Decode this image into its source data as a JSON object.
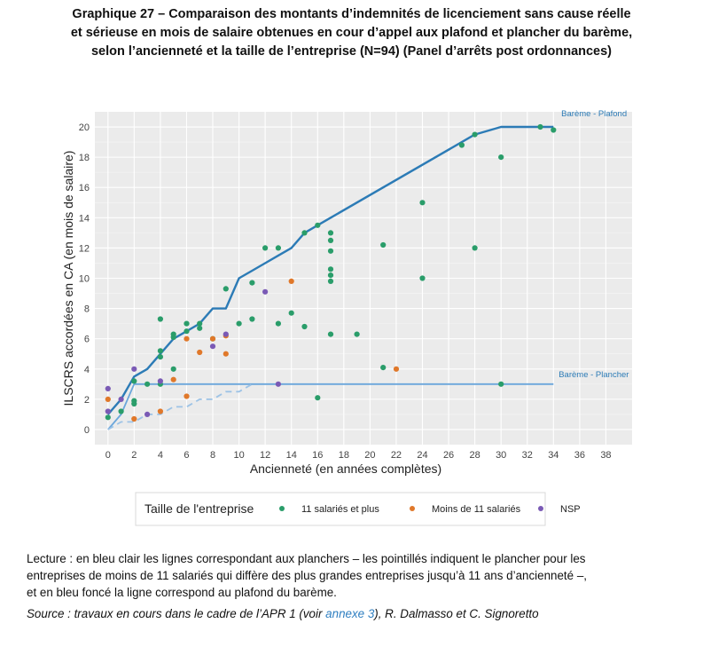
{
  "title_lines": [
    "Graphique 27 – Comparaison des montants d’indemnités de licenciement sans cause réelle",
    "et sérieuse en mois de salaire obtenues en cour d’appel aux plafond et plancher du barème,",
    "selon l’ancienneté et la taille de l’entreprise (N=94) (Panel d’arrêts post ordonnances)"
  ],
  "lecture": {
    "lines": [
      "Lecture : en bleu clair les lignes correspondant aux planchers – les pointillés indiquent le plancher pour les",
      "entreprises de moins de 11 salariés qui diffère des plus grandes entreprises jusqu’à 11 ans d’ancienneté –,",
      "et en bleu foncé la ligne correspond au plafond du barème."
    ]
  },
  "source": {
    "prefix": "Source : travaux en cours dans le cadre de l’APR 1 (voir ",
    "link": "annexe 3",
    "suffix": "), R. Dalmasso et C. Signoretto"
  },
  "colors": {
    "plafond": "#2c7bb6",
    "plancher": "#6aa6db",
    "plancher_small": "#9dc3e6",
    "series_11_plus": "#2a9d6a",
    "series_moins_11": "#e0782a",
    "series_nsp": "#7a5ab5",
    "panel_bg": "#ebebeb",
    "grid": "#ffffff"
  },
  "chart_data": {
    "type": "scatter",
    "xlabel": "Ancienneté (en années complètes)",
    "ylabel": "ILSCRS accordées en CA (en mois de salaire)",
    "xlim": [
      -1,
      40
    ],
    "ylim": [
      -1,
      21
    ],
    "x_ticks": [
      0,
      2,
      4,
      6,
      8,
      10,
      12,
      14,
      16,
      18,
      20,
      22,
      24,
      26,
      28,
      30,
      32,
      34,
      36,
      38
    ],
    "y_ticks": [
      0,
      2,
      4,
      6,
      8,
      10,
      12,
      14,
      16,
      18,
      20
    ],
    "grid": true,
    "legend": {
      "title": "Taille de l'entreprise",
      "placement": "bottom",
      "entries": [
        "11 salariés et plus",
        "Moins de 11 salariés",
        "NSP"
      ]
    },
    "lines": [
      {
        "name": "Barème - Plafond",
        "style": "solid",
        "points": [
          [
            0,
            1
          ],
          [
            1,
            2
          ],
          [
            2,
            3.5
          ],
          [
            3,
            4
          ],
          [
            4,
            5
          ],
          [
            5,
            6
          ],
          [
            6,
            6.5
          ],
          [
            7,
            7
          ],
          [
            8,
            8
          ],
          [
            9,
            8
          ],
          [
            10,
            10
          ],
          [
            11,
            10.5
          ],
          [
            12,
            11
          ],
          [
            13,
            11.5
          ],
          [
            14,
            12
          ],
          [
            15,
            13
          ],
          [
            16,
            13.5
          ],
          [
            17,
            14
          ],
          [
            28,
            19.5
          ],
          [
            30,
            20
          ],
          [
            34,
            20
          ]
        ]
      },
      {
        "name": "Barème - Plancher",
        "style": "solid",
        "points": [
          [
            0,
            0
          ],
          [
            1,
            1
          ],
          [
            2,
            3
          ],
          [
            34,
            3
          ]
        ]
      },
      {
        "name": "",
        "style": "dashed",
        "points": [
          [
            0,
            0
          ],
          [
            1,
            0.5
          ],
          [
            2,
            0.5
          ],
          [
            3,
            1
          ],
          [
            4,
            1
          ],
          [
            5,
            1.5
          ],
          [
            6,
            1.5
          ],
          [
            7,
            2
          ],
          [
            8,
            2
          ],
          [
            9,
            2.5
          ],
          [
            10,
            2.5
          ],
          [
            11,
            3
          ]
        ]
      }
    ],
    "line_labels": [
      "Barème - Plafond",
      "Barème - Plancher"
    ],
    "series": [
      {
        "name": "11 salariés et plus",
        "points": [
          [
            0,
            0.8
          ],
          [
            1,
            1.2
          ],
          [
            2,
            1.7
          ],
          [
            2,
            1.9
          ],
          [
            2,
            3.2
          ],
          [
            3,
            3
          ],
          [
            4,
            3
          ],
          [
            4,
            4.8
          ],
          [
            4,
            5.2
          ],
          [
            4,
            7.3
          ],
          [
            5,
            4
          ],
          [
            5,
            6.1
          ],
          [
            5,
            6.3
          ],
          [
            6,
            6.5
          ],
          [
            6,
            7
          ],
          [
            7,
            6.7
          ],
          [
            7,
            7
          ],
          [
            8,
            6
          ],
          [
            9,
            9.3
          ],
          [
            10,
            7
          ],
          [
            11,
            7.3
          ],
          [
            11,
            9.7
          ],
          [
            12,
            12
          ],
          [
            13,
            7
          ],
          [
            13,
            12
          ],
          [
            14,
            7.7
          ],
          [
            15,
            6.8
          ],
          [
            15,
            13
          ],
          [
            16,
            2.1
          ],
          [
            16,
            13.5
          ],
          [
            17,
            6.3
          ],
          [
            17,
            9.8
          ],
          [
            17,
            10.2
          ],
          [
            17,
            10.6
          ],
          [
            17,
            11.8
          ],
          [
            17,
            12.5
          ],
          [
            17,
            13
          ],
          [
            19,
            6.3
          ],
          [
            21,
            4.1
          ],
          [
            21,
            12.2
          ],
          [
            24,
            10
          ],
          [
            24,
            15
          ],
          [
            27,
            18.8
          ],
          [
            28,
            12
          ],
          [
            28,
            19.5
          ],
          [
            30,
            3
          ],
          [
            30,
            18
          ],
          [
            33,
            20
          ],
          [
            34,
            19.8
          ]
        ]
      },
      {
        "name": "Moins de 11 salariés",
        "points": [
          [
            0,
            2
          ],
          [
            2,
            0.7
          ],
          [
            4,
            1.2
          ],
          [
            5,
            3.3
          ],
          [
            6,
            2.2
          ],
          [
            6,
            6
          ],
          [
            7,
            5.1
          ],
          [
            8,
            6
          ],
          [
            9,
            5
          ],
          [
            9,
            6.2
          ],
          [
            14,
            9.8
          ],
          [
            22,
            4
          ]
        ]
      },
      {
        "name": "NSP",
        "points": [
          [
            0,
            2.7
          ],
          [
            0,
            1.2
          ],
          [
            1,
            2
          ],
          [
            2,
            4
          ],
          [
            3,
            1
          ],
          [
            4,
            3.2
          ],
          [
            8,
            5.5
          ],
          [
            9,
            6.3
          ],
          [
            12,
            9.1
          ],
          [
            13,
            3
          ]
        ]
      }
    ]
  }
}
